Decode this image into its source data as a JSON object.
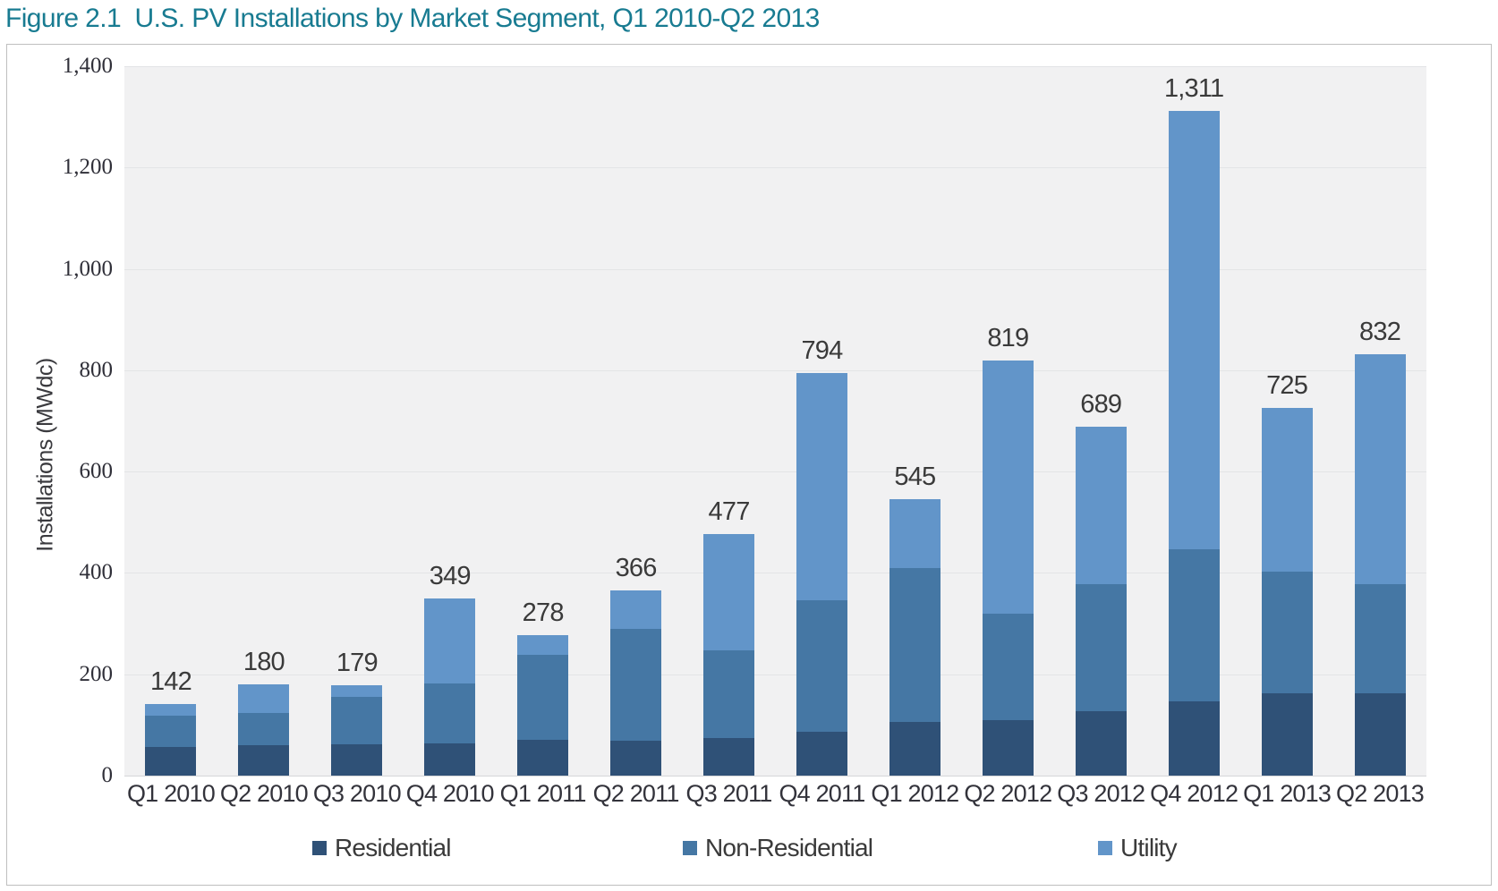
{
  "figure": {
    "title": "Figure 2.1  U.S. PV Installations by Market Segment, Q1 2010-Q2 2013"
  },
  "chart_data": {
    "type": "bar",
    "stacked": true,
    "title": "Figure 2.1  U.S. PV Installations by Market Segment, Q1 2010-Q2 2013",
    "xlabel": "",
    "ylabel": "Installations (MWdc)",
    "ylim": [
      0,
      1400
    ],
    "ytick_step": 200,
    "ytick_labels": [
      "0",
      "200",
      "400",
      "600",
      "800",
      "1,000",
      "1,200",
      "1,400"
    ],
    "grid": true,
    "legend_position": "bottom",
    "plot_background": "#f1f1f2",
    "categories": [
      "Q1 2010",
      "Q2 2010",
      "Q3 2010",
      "Q4 2010",
      "Q1 2011",
      "Q2 2011",
      "Q3 2011",
      "Q4 2011",
      "Q1 2012",
      "Q2 2012",
      "Q3 2012",
      "Q4 2012",
      "Q1 2013",
      "Q2 2013"
    ],
    "series": [
      {
        "name": "Residential",
        "color": "#2F5177",
        "values": [
          56,
          60,
          62,
          64,
          70,
          68,
          74,
          87,
          106,
          109,
          127,
          147,
          163,
          162
        ]
      },
      {
        "name": "Non-Residential",
        "color": "#4577A4",
        "values": [
          62,
          63,
          93,
          117,
          169,
          222,
          174,
          259,
          303,
          210,
          250,
          300,
          240,
          215
        ]
      },
      {
        "name": "Utility",
        "color": "#6295C9",
        "values": [
          24,
          57,
          24,
          168,
          39,
          76,
          229,
          448,
          136,
          500,
          312,
          864,
          322,
          455
        ]
      }
    ],
    "totals": [
      142,
      180,
      179,
      349,
      278,
      366,
      477,
      794,
      545,
      819,
      689,
      1311,
      725,
      832
    ],
    "total_labels": [
      "142",
      "180",
      "179",
      "349",
      "278",
      "366",
      "477",
      "794",
      "545",
      "819",
      "689",
      "1,311",
      "725",
      "832"
    ]
  },
  "colors": {
    "title_text": "#187B91",
    "residential": "#2F5177",
    "non_residential": "#4577A4",
    "utility": "#6295C9",
    "plot_background": "#F1F1F2",
    "gridline": "#E3E4E6",
    "chart_border": "#BFBFBF",
    "label_text": "#3A3A3A"
  }
}
